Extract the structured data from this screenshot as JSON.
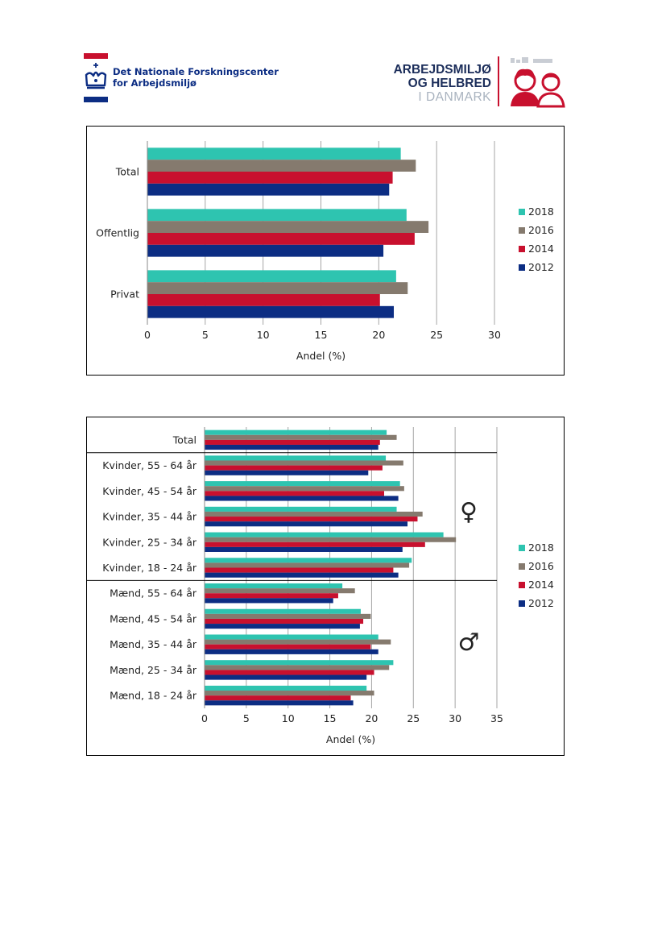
{
  "header": {
    "left_logo": {
      "line1": "Det Nationale Forskningscenter",
      "line2": "for Arbejdsmiljø"
    },
    "right_logo": {
      "line1": "ARBEJDSMILJØ",
      "line2": "OG HELBRED",
      "line3": "I DANMARK"
    },
    "colors": {
      "red": "#c8102e",
      "navy": "#0c2d83"
    }
  },
  "chart_data": [
    {
      "type": "bar",
      "orientation": "horizontal",
      "categories": [
        "Total",
        "Offentlig",
        "Privat"
      ],
      "series": [
        {
          "name": "2018",
          "color": "#2ec4b0",
          "values": [
            21.9,
            22.4,
            21.5
          ]
        },
        {
          "name": "2016",
          "color": "#857a6e",
          "values": [
            23.2,
            24.3,
            22.5
          ]
        },
        {
          "name": "2014",
          "color": "#c8102e",
          "values": [
            21.2,
            23.1,
            20.1
          ]
        },
        {
          "name": "2012",
          "color": "#0c2d83",
          "values": [
            20.9,
            20.4,
            21.3
          ]
        }
      ],
      "xlabel": "Andel (%)",
      "xlim": [
        0,
        30
      ],
      "xticks": [
        "0",
        "5",
        "10",
        "15",
        "20",
        "25",
        "30"
      ],
      "legend_position": "right"
    },
    {
      "type": "bar",
      "orientation": "horizontal",
      "categories": [
        "Total",
        "Kvinder, 55 - 64 år",
        "Kvinder, 45 - 54 år",
        "Kvinder, 35 - 44 år",
        "Kvinder, 25 - 34 år",
        "Kvinder, 18 - 24 år",
        "Mænd, 55 - 64 år",
        "Mænd, 45 - 54 år",
        "Mænd, 35 - 44 år",
        "Mænd, 25 - 34 år",
        "Mænd, 18 - 24 år"
      ],
      "series": [
        {
          "name": "2018",
          "color": "#2ec4b0",
          "values": [
            21.8,
            21.7,
            23.4,
            23.0,
            28.6,
            24.8,
            16.5,
            18.7,
            20.8,
            22.6,
            19.4
          ]
        },
        {
          "name": "2016",
          "color": "#857a6e",
          "values": [
            23.0,
            23.8,
            23.9,
            26.1,
            30.1,
            24.5,
            18.0,
            19.9,
            22.3,
            22.1,
            20.3
          ]
        },
        {
          "name": "2014",
          "color": "#c8102e",
          "values": [
            21.0,
            21.3,
            21.5,
            25.5,
            26.4,
            22.6,
            16.0,
            19.0,
            19.9,
            20.3,
            17.5
          ]
        },
        {
          "name": "2012",
          "color": "#0c2d83",
          "values": [
            20.8,
            19.6,
            23.2,
            24.3,
            23.7,
            23.2,
            15.4,
            18.6,
            20.8,
            19.4,
            17.8
          ]
        }
      ],
      "xlabel": "Andel (%)",
      "xlim": [
        0,
        35
      ],
      "xticks": [
        "0",
        "5",
        "10",
        "15",
        "20",
        "25",
        "30",
        "35"
      ],
      "legend_position": "right",
      "annotations": {
        "female_symbol": "♀",
        "male_symbol": "♂"
      }
    }
  ]
}
